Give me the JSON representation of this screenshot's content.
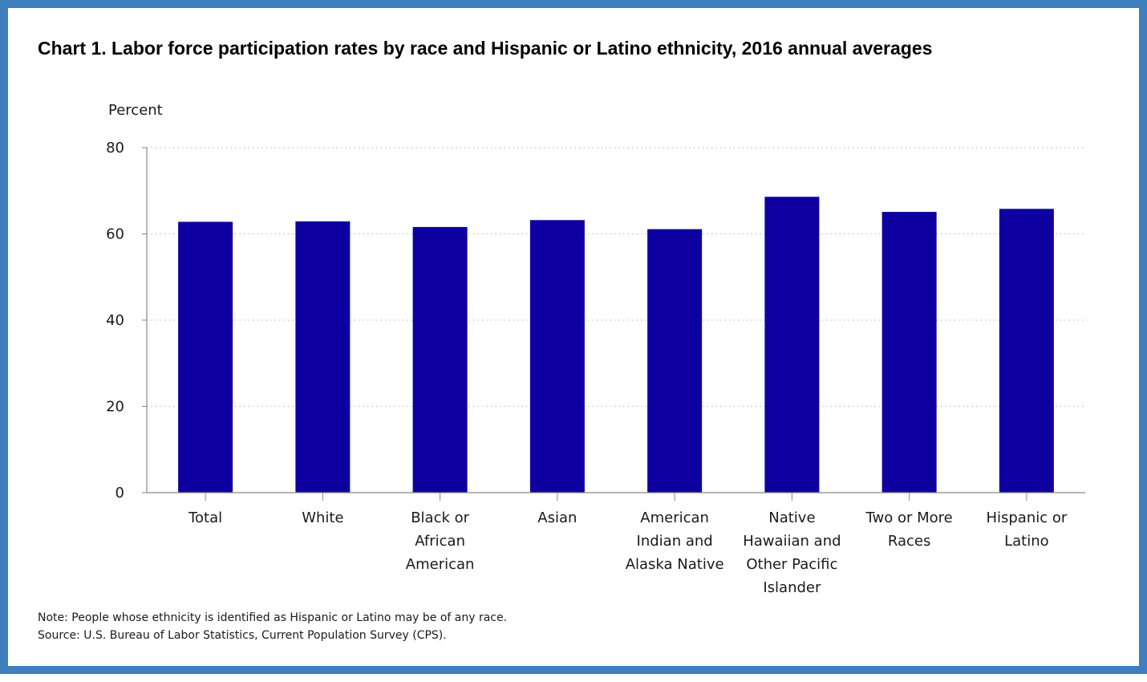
{
  "chart_data": {
    "type": "bar",
    "title": "Chart 1. Labor force participation rates by race and Hispanic or Latino ethnicity, 2016 annual averages",
    "ylabel": "Percent",
    "xlabel": "",
    "ylim": [
      0,
      80
    ],
    "yticks": [
      0,
      20,
      40,
      60,
      80
    ],
    "grid": true,
    "bar_color": "#0e00a0",
    "categories": [
      [
        "Total"
      ],
      [
        "White"
      ],
      [
        "Black or",
        "African",
        "American"
      ],
      [
        "Asian"
      ],
      [
        "American",
        "Indian and",
        "Alaska Native"
      ],
      [
        "Native",
        "Hawaiian and",
        "Other Pacific",
        "Islander"
      ],
      [
        "Two or More",
        "Races"
      ],
      [
        "Hispanic or",
        "Latino"
      ]
    ],
    "values": [
      62.8,
      62.9,
      61.6,
      63.2,
      61.1,
      68.6,
      65.1,
      65.8
    ]
  },
  "notes": {
    "note": "Note: People whose ethnicity is identified as Hispanic or Latino may be of any race.",
    "source": "Source: U.S. Bureau of Labor Statistics, Current Population Survey (CPS)."
  }
}
